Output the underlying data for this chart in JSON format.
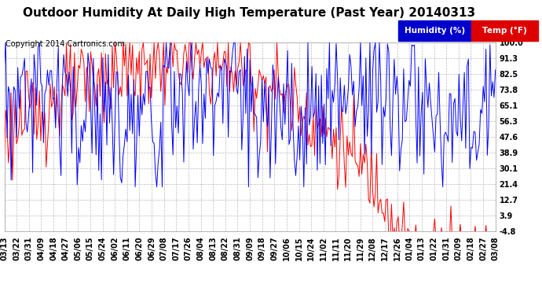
{
  "title": "Outdoor Humidity At Daily High Temperature (Past Year) 20140313",
  "copyright": "Copyright 2014 Cartronics.com",
  "background_color": "#ffffff",
  "plot_bg_color": "#ffffff",
  "grid_color": "#bbbbbb",
  "yticks_right": [
    100.0,
    91.3,
    82.5,
    73.8,
    65.1,
    56.3,
    47.6,
    38.9,
    30.1,
    21.4,
    12.7,
    3.9,
    -4.8
  ],
  "ymin": -4.8,
  "ymax": 100.0,
  "legend_humidity_label": "Humidity (%)",
  "legend_temp_label": "Temp (°F)",
  "legend_humidity_bg": "#0000cc",
  "legend_temp_bg": "#dd0000",
  "line_humidity_color": "#0000ff",
  "line_temp_color": "#ff0000",
  "title_fontsize": 11,
  "copyright_fontsize": 7,
  "tick_fontsize": 7,
  "legend_fontsize": 7.5,
  "xtick_dates": [
    "03/13",
    "03/22",
    "03/31",
    "04/09",
    "04/18",
    "04/27",
    "05/06",
    "05/15",
    "05/24",
    "06/02",
    "06/11",
    "06/20",
    "06/29",
    "07/08",
    "07/17",
    "07/26",
    "08/04",
    "08/13",
    "08/22",
    "08/31",
    "09/09",
    "09/18",
    "09/27",
    "10/06",
    "10/15",
    "10/24",
    "11/02",
    "11/11",
    "11/20",
    "11/29",
    "12/08",
    "12/17",
    "12/26",
    "01/04",
    "01/13",
    "01/22",
    "01/31",
    "02/09",
    "02/18",
    "02/27",
    "03/08"
  ]
}
